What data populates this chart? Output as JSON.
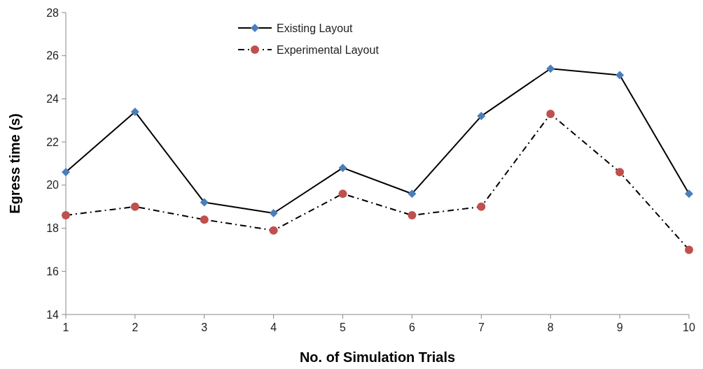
{
  "chart_data": {
    "type": "line",
    "xlabel": "No. of Simulation Trials",
    "ylabel": "Egress time (s)",
    "x": [
      1,
      2,
      3,
      4,
      5,
      6,
      7,
      8,
      9,
      10
    ],
    "xlim": [
      1,
      10
    ],
    "xticks": [
      1,
      2,
      3,
      4,
      5,
      6,
      7,
      8,
      9,
      10
    ],
    "ylim": [
      14,
      28
    ],
    "yticks": [
      14,
      16,
      18,
      20,
      22,
      24,
      26,
      28
    ],
    "grid": false,
    "legend": "top",
    "series": [
      {
        "name": "Existing Layout",
        "color": "#4a7ebb",
        "marker": "diamond",
        "line_style": "solid",
        "values": [
          20.6,
          23.4,
          19.2,
          18.7,
          20.8,
          19.6,
          23.2,
          25.4,
          25.1,
          19.6
        ]
      },
      {
        "name": "Experimental Layout",
        "color": "#c0504d",
        "marker": "circle",
        "line_style": "dashed",
        "values": [
          18.6,
          19.0,
          18.4,
          17.9,
          19.6,
          18.6,
          19.0,
          23.3,
          20.6,
          17.0
        ]
      }
    ]
  }
}
